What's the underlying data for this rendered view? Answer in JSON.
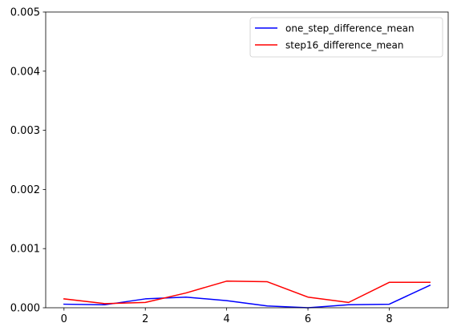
{
  "chart_data": {
    "type": "line",
    "title": "",
    "xlabel": "",
    "ylabel": "",
    "x": [
      0,
      1,
      2,
      3,
      4,
      5,
      6,
      7,
      8,
      9
    ],
    "xlim": [
      -0.45,
      9.45
    ],
    "ylim": [
      0,
      0.005
    ],
    "xticks": [
      0,
      2,
      4,
      6,
      8
    ],
    "xtick_labels": [
      "0",
      "2",
      "4",
      "6",
      "8"
    ],
    "yticks": [
      0,
      0.001,
      0.002,
      0.003,
      0.004,
      0.005
    ],
    "ytick_labels": [
      "0.000",
      "0.001",
      "0.002",
      "0.003",
      "0.004",
      "0.005"
    ],
    "grid": false,
    "legend_position": "upper-right",
    "series": [
      {
        "name": "one_step_difference_mean",
        "color": "#0000ff",
        "values": [
          6e-05,
          5e-05,
          0.00015,
          0.00018,
          0.00012,
          3e-05,
          0.0,
          5e-05,
          6e-05,
          0.00038
        ]
      },
      {
        "name": "step16_difference_mean",
        "color": "#ff0000",
        "values": [
          0.00015,
          7e-05,
          9e-05,
          0.00025,
          0.00045,
          0.00044,
          0.00018,
          9e-05,
          0.00043,
          0.00043
        ]
      }
    ]
  }
}
